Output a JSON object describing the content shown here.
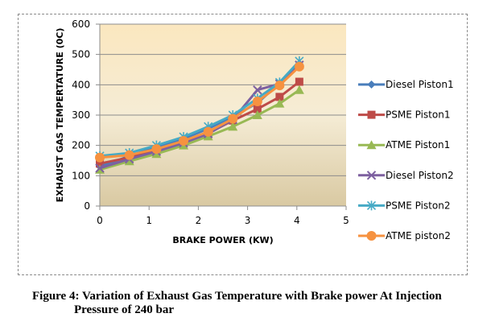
{
  "chart_data": {
    "type": "line",
    "title": "",
    "xlabel": "BRAKE POWER (KW)",
    "ylabel": "EXHAUST GAS TEMPERTATURE (0C)",
    "xlim": [
      0,
      5
    ],
    "ylim": [
      0,
      600
    ],
    "xticks": [
      "0",
      "1",
      "2",
      "3",
      "4",
      "5"
    ],
    "yticks": [
      "0",
      "100",
      "200",
      "300",
      "400",
      "500",
      "600"
    ],
    "grid": "horizontal",
    "legend_position": "right",
    "x": [
      0,
      0.6,
      1.15,
      1.7,
      2.2,
      2.7,
      3.2,
      3.65,
      4.05
    ],
    "series": [
      {
        "name": "Diesel Piston1",
        "color": "#4a7ebb",
        "marker": "diamond",
        "values": [
          130,
          165,
          195,
          222,
          255,
          295,
          340,
          405,
          470
        ]
      },
      {
        "name": "PSME Piston1",
        "color": "#be4b48",
        "marker": "square",
        "values": [
          140,
          160,
          183,
          212,
          240,
          282,
          320,
          360,
          410
        ]
      },
      {
        "name": "ATME Piston1",
        "color": "#98b954",
        "marker": "triangle",
        "values": [
          120,
          148,
          172,
          200,
          230,
          262,
          300,
          338,
          383
        ]
      },
      {
        "name": "Diesel Piston2",
        "color": "#7d60a0",
        "marker": "x",
        "values": [
          125,
          155,
          180,
          208,
          238,
          285,
          383,
          403,
          465
        ]
      },
      {
        "name": "PSME Piston2",
        "color": "#46aac5",
        "marker": "star",
        "values": [
          165,
          175,
          200,
          228,
          262,
          300,
          355,
          408,
          478
        ]
      },
      {
        "name": "ATME piston2",
        "color": "#f69240",
        "marker": "circle",
        "values": [
          160,
          168,
          188,
          215,
          245,
          288,
          345,
          398,
          460
        ]
      }
    ]
  },
  "caption": {
    "line1": "Figure 4: Variation of Exhaust Gas Temperature with Brake power At Injection",
    "line2": "Pressure of 240 bar"
  }
}
